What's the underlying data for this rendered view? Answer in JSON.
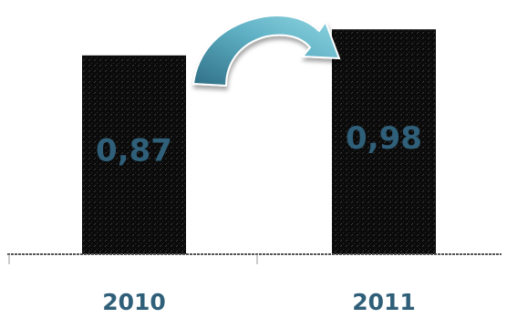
{
  "chart_data": {
    "type": "bar",
    "categories": [
      "2010",
      "2011"
    ],
    "values": [
      0.87,
      0.98
    ],
    "value_labels": [
      "0,87",
      "0,98"
    ],
    "ylim": [
      0,
      1.0
    ],
    "grid": false,
    "title": "",
    "xlabel": "",
    "ylabel": "",
    "colors": {
      "bar": "#0d0d0d",
      "label": "#2f5f79",
      "arrow_light": "#7ecad8",
      "arrow_dark": "#2f6f86"
    }
  }
}
